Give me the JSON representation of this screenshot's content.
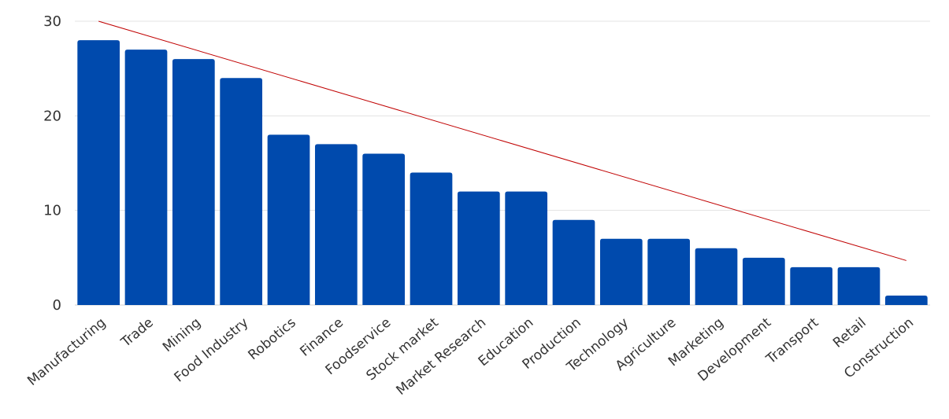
{
  "chart_data": {
    "type": "bar",
    "title": "",
    "xlabel": "",
    "ylabel": "",
    "ylim": [
      0,
      30
    ],
    "yticks": [
      0,
      10,
      20,
      30
    ],
    "grid": true,
    "legend": "none",
    "categories": [
      "Manufacturing",
      "Trade",
      "Mining",
      "Food Industry",
      "Robotics",
      "Finance",
      "Foodservice",
      "Stock market",
      "Market Research",
      "Education",
      "Production",
      "Technology",
      "Agriculture",
      "Marketing",
      "Development",
      "Transport",
      "Retail",
      "Construction"
    ],
    "series": [
      {
        "values": [
          28,
          27,
          26,
          24,
          18,
          17,
          16,
          14,
          12,
          12,
          9,
          7,
          7,
          6,
          5,
          4,
          4,
          1
        ],
        "color": "#004aad"
      }
    ],
    "trendline": {
      "from": 30,
      "to": 4.7,
      "color": "#c00000"
    }
  }
}
